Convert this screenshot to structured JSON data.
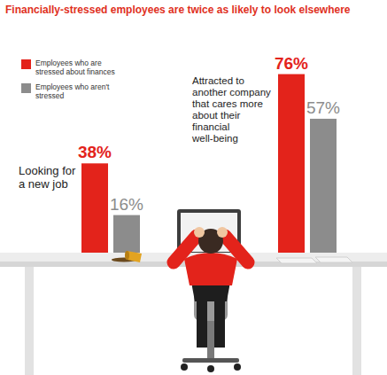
{
  "chart_data": {
    "type": "bar",
    "title": "Financially-stressed employees are twice as likely to look elsewhere",
    "categories": [
      "Looking for a new job",
      "Attracted to another company that cares more about their financial well-being"
    ],
    "series": [
      {
        "name": "Employees who are stressed about finances",
        "color": "#e3231b",
        "values": [
          38,
          76
        ],
        "value_labels": [
          "38%",
          "76%"
        ]
      },
      {
        "name": "Employees who aren't stressed",
        "color": "#8c8c8c",
        "values": [
          16,
          57
        ],
        "value_labels": [
          "16%",
          "57%"
        ]
      }
    ],
    "ylim": [
      0,
      100
    ],
    "data_labels": true,
    "tick_labels": false,
    "legend": "top-left"
  }
}
